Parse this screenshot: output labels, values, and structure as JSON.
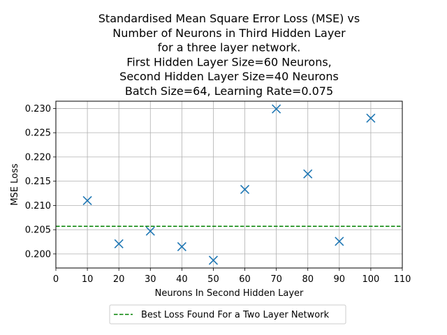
{
  "chart_data": {
    "type": "scatter",
    "title_lines": [
      "Standardised Mean Square Error Loss (MSE) vs",
      "Number of Neurons in Third Hidden Layer",
      "for a three layer network.",
      "First Hidden Layer Size=60 Neurons,",
      "Second Hidden Layer Size=40 Neurons",
      "Batch Size=64, Learning Rate=0.075"
    ],
    "xlabel": "Neurons In Second Hidden Layer",
    "ylabel": "MSE Loss",
    "xlim": [
      0,
      110
    ],
    "ylim": [
      0.1971,
      0.2315
    ],
    "xticks": [
      0,
      10,
      20,
      30,
      40,
      50,
      60,
      70,
      80,
      90,
      100,
      110
    ],
    "yticks": [
      0.2,
      0.205,
      0.21,
      0.215,
      0.22,
      0.225,
      0.23
    ],
    "ytick_labels": [
      "0.200",
      "0.205",
      "0.210",
      "0.215",
      "0.220",
      "0.225",
      "0.230"
    ],
    "grid": true,
    "series": [
      {
        "marker": "x",
        "color": "#1f77b4",
        "x": [
          10,
          20,
          30,
          40,
          50,
          60,
          70,
          80,
          90,
          100
        ],
        "y": [
          0.211,
          0.2021,
          0.2047,
          0.2015,
          0.1987,
          0.2133,
          0.2299,
          0.2165,
          0.2026,
          0.228
        ]
      }
    ],
    "reference_line": {
      "name": "Best Loss Found For a Two Layer Network",
      "y": 0.2057,
      "style": "dashed",
      "color": "#008000"
    },
    "legend_placement": "below plot, centered"
  }
}
